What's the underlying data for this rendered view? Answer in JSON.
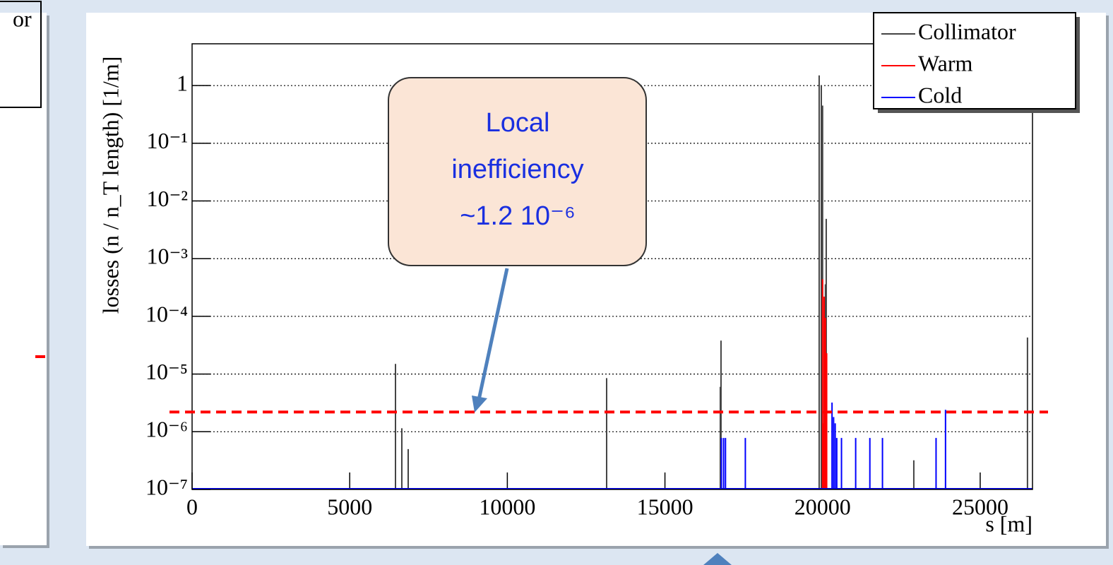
{
  "left_panel_text": "or",
  "chart_data": {
    "type": "spike",
    "xlabel": "s [m]",
    "ylabel": "losses (n / n_T length) [1/m]",
    "xlim": [
      0,
      26659
    ],
    "xticks": [
      0,
      5000,
      10000,
      15000,
      20000,
      25000
    ],
    "ylim": [
      1e-07,
      5.3
    ],
    "log_y": true,
    "grid": true,
    "yticks": [
      {
        "value": 1e-07,
        "label": "10⁻⁷"
      },
      {
        "value": 1e-06,
        "label": "10⁻⁶"
      },
      {
        "value": 1e-05,
        "label": "10⁻⁵"
      },
      {
        "value": 0.0001,
        "label": "10⁻⁴"
      },
      {
        "value": 0.001,
        "label": "10⁻³"
      },
      {
        "value": 0.01,
        "label": "10⁻²"
      },
      {
        "value": 0.1,
        "label": "10⁻¹"
      },
      1
    ],
    "legend": "top-right",
    "series": [
      {
        "name": "Collimator",
        "color": "#444444",
        "x": [
          6452,
          6653,
          6855,
          13150,
          16756,
          16778,
          19892,
          19960,
          20000,
          20116,
          20090,
          22894,
          26500
        ],
        "values": [
          1.5e-05,
          1.15e-06,
          5e-07,
          8.5e-06,
          6e-06,
          3.8e-05,
          1.5,
          1.0,
          0.45,
          0.0049,
          0.00036,
          3.2e-07,
          4.3e-05
        ]
      },
      {
        "name": "Warm",
        "color": "#ff0000",
        "x": [
          20000,
          20020,
          20050,
          20070,
          20090,
          20130
        ],
        "values": [
          0.00044,
          1.4e-06,
          0.00022,
          5e-05,
          9.4e-05,
          2.3e-05
        ]
      },
      {
        "name": "Cold",
        "color": "#0000ff",
        "x": [
          16790,
          16860,
          16920,
          17550,
          20300,
          20350,
          20400,
          20450,
          20600,
          21050,
          21500,
          21900,
          23600,
          23900
        ],
        "values": [
          7.8e-07,
          7.8e-07,
          7.8e-07,
          7.8e-07,
          3.2e-06,
          1.8e-06,
          1.4e-06,
          7.8e-07,
          7.8e-07,
          7.8e-07,
          7.8e-07,
          7.8e-07,
          7.8e-07,
          2.4e-06
        ]
      }
    ],
    "threshold": 2.2e-06,
    "annotation": [
      "Local",
      "inefficiency",
      "~1.2 10⁻⁶"
    ]
  }
}
